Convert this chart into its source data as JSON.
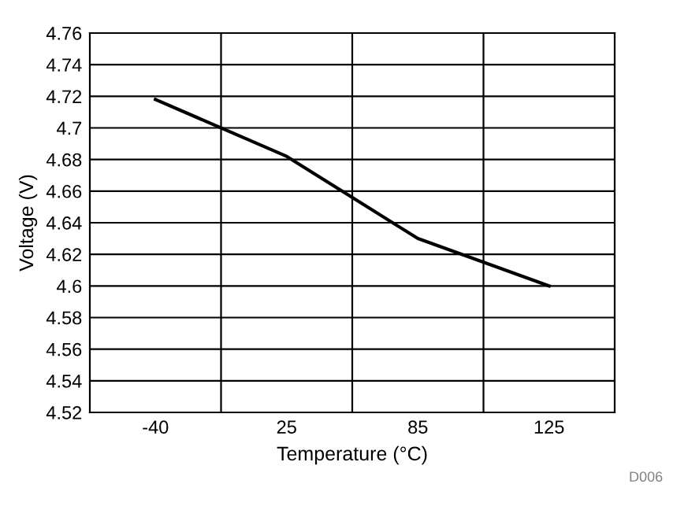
{
  "chart_data": {
    "type": "line",
    "xlabel": "Temperature (°C)",
    "ylabel": "Voltage (V)",
    "categories": [
      "-40",
      "25",
      "85",
      "125"
    ],
    "series": [
      {
        "color": "#000000",
        "values": [
          4.718,
          4.682,
          4.63,
          4.6
        ]
      }
    ],
    "ylim": [
      4.52,
      4.76
    ],
    "yticks": [
      4.52,
      4.54,
      4.56,
      4.58,
      4.6,
      4.62,
      4.64,
      4.66,
      4.68,
      4.7,
      4.72,
      4.74,
      4.76
    ],
    "grid": true,
    "marker": "none",
    "line_style": "solid",
    "annotations": [
      "D006"
    ]
  }
}
